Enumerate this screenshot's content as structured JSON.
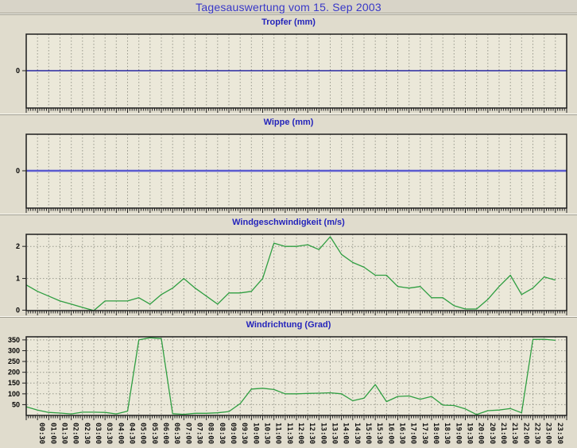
{
  "page": {
    "title": "Tagesauswertung vom 15. Sep 2003"
  },
  "time_axis": {
    "start": "00:00",
    "step_minutes": 30,
    "points": 48,
    "tick_labels": [
      "00:30",
      "01:00",
      "01:30",
      "02:00",
      "02:30",
      "03:00",
      "03:30",
      "04:00",
      "04:30",
      "05:00",
      "05:30",
      "06:00",
      "06:30",
      "07:00",
      "07:30",
      "08:00",
      "08:30",
      "09:00",
      "09:30",
      "10:00",
      "10:30",
      "11:00",
      "11:30",
      "12:00",
      "12:30",
      "13:00",
      "13:30",
      "14:00",
      "14:30",
      "15:00",
      "15:30",
      "16:00",
      "16:30",
      "17:00",
      "17:30",
      "18:00",
      "18:30",
      "19:00",
      "19:30",
      "20:00",
      "20:30",
      "21:00",
      "21:30",
      "22:00",
      "22:30",
      "23:00",
      "23:30"
    ]
  },
  "chart_data": [
    {
      "type": "line",
      "title": "Tropfer (mm)",
      "ylim": [
        -1,
        1
      ],
      "yticks": [
        {
          "v": 0,
          "label": "0"
        }
      ],
      "ygrid": [],
      "line_color": "#000099",
      "line_width": 1.2,
      "extend_to_edge": true,
      "show_x_labels": false,
      "values": [
        0,
        0,
        0,
        0,
        0,
        0,
        0,
        0,
        0,
        0,
        0,
        0,
        0,
        0,
        0,
        0,
        0,
        0,
        0,
        0,
        0,
        0,
        0,
        0,
        0,
        0,
        0,
        0,
        0,
        0,
        0,
        0,
        0,
        0,
        0,
        0,
        0,
        0,
        0,
        0,
        0,
        0,
        0,
        0,
        0,
        0,
        0,
        0
      ]
    },
    {
      "type": "line",
      "title": "Wippe (mm)",
      "ylim": [
        -1,
        1
      ],
      "yticks": [
        {
          "v": 0,
          "label": "0"
        }
      ],
      "ygrid": [],
      "line_color": "#5a5ad0",
      "line_width": 2.4,
      "extend_to_edge": true,
      "show_x_labels": false,
      "values": [
        0,
        0,
        0,
        0,
        0,
        0,
        0,
        0,
        0,
        0,
        0,
        0,
        0,
        0,
        0,
        0,
        0,
        0,
        0,
        0,
        0,
        0,
        0,
        0,
        0,
        0,
        0,
        0,
        0,
        0,
        0,
        0,
        0,
        0,
        0,
        0,
        0,
        0,
        0,
        0,
        0,
        0,
        0,
        0,
        0,
        0,
        0,
        0
      ]
    },
    {
      "type": "line",
      "title": "Windgeschwindigkeit (m/s)",
      "ylim": [
        0,
        2.4
      ],
      "yticks": [
        {
          "v": 0,
          "label": "0"
        },
        {
          "v": 1,
          "label": "1"
        },
        {
          "v": 2,
          "label": "2"
        }
      ],
      "ygrid": [
        1,
        2
      ],
      "line_color": "#2f9e41",
      "line_width": 1.3,
      "extend_to_edge": false,
      "show_x_labels": false,
      "values": [
        0.8,
        0.6,
        0.45,
        0.3,
        0.2,
        0.1,
        0,
        0.3,
        0.3,
        0.3,
        0.4,
        0.2,
        0.5,
        0.7,
        1.0,
        0.7,
        0.45,
        0.2,
        0.55,
        0.55,
        0.6,
        1.0,
        2.1,
        2.0,
        2.0,
        2.05,
        1.9,
        2.3,
        1.75,
        1.5,
        1.35,
        1.1,
        1.1,
        0.75,
        0.7,
        0.75,
        0.4,
        0.4,
        0.15,
        0.05,
        0.05,
        0.35,
        0.75,
        1.1,
        0.5,
        0.7,
        1.05,
        0.95
      ]
    },
    {
      "type": "line",
      "title": "Windrichtung (Grad)",
      "ylim": [
        0,
        368
      ],
      "yticks": [
        {
          "v": 50,
          "label": "50"
        },
        {
          "v": 100,
          "label": "100"
        },
        {
          "v": 150,
          "label": "150"
        },
        {
          "v": 200,
          "label": "200"
        },
        {
          "v": 250,
          "label": "250"
        },
        {
          "v": 300,
          "label": "300"
        },
        {
          "v": 350,
          "label": "350"
        }
      ],
      "ygrid": [
        50,
        100,
        150,
        200,
        250,
        300,
        350
      ],
      "line_color": "#2f9e41",
      "line_width": 1.3,
      "extend_to_edge": false,
      "show_x_labels": true,
      "values": [
        40,
        25,
        14,
        11,
        7,
        15,
        15,
        14,
        7,
        20,
        350,
        360,
        356,
        8,
        5,
        10,
        10,
        12,
        18,
        55,
        122,
        126,
        120,
        100,
        100,
        102,
        103,
        105,
        100,
        68,
        80,
        143,
        64,
        88,
        90,
        75,
        88,
        48,
        46,
        30,
        4,
        22,
        25,
        32,
        12,
        352,
        353,
        348
      ]
    }
  ]
}
